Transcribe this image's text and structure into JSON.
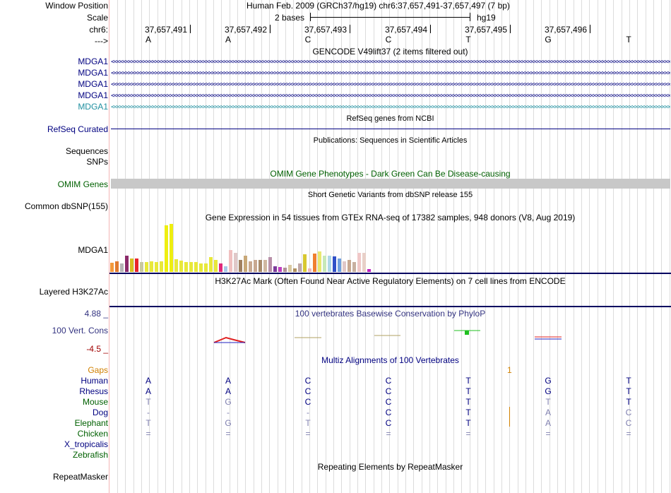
{
  "header": {
    "window_position_label": "Window Position",
    "window_position_text": "Human Feb. 2009 (GRCh37/hg19)   chr6:37,657,491-37,657,497 (7 bp)",
    "scale_label": "Scale",
    "scale_text": "2 bases",
    "scale_assembly": "hg19",
    "chrom_label": "chr6:",
    "strand_label": "--->",
    "positions": [
      "37,657,491",
      "37,657,492",
      "37,657,493",
      "37,657,494",
      "37,657,495",
      "37,657,496"
    ],
    "bases": [
      "A",
      "A",
      "C",
      "C",
      "T",
      "G",
      "T"
    ]
  },
  "tracks": {
    "gencode_title": "GENCODE V49lift37 (2 items filtered out)",
    "gencode_items": [
      "MDGA1",
      "MDGA1",
      "MDGA1",
      "MDGA1",
      "MDGA1"
    ],
    "refseq_title": "RefSeq genes from NCBI",
    "refseq_label": "RefSeq Curated",
    "publications_title": "Publications: Sequences in Scientific Articles",
    "sequences_label": "Sequences",
    "snps_label": "SNPs",
    "omim_title": "OMIM Gene Phenotypes - Dark Green Can Be Disease-causing",
    "omim_label": "OMIM Genes",
    "dbsnp_title": "Short Genetic Variants from dbSNP release 155",
    "dbsnp_label": "Common dbSNP(155)",
    "gtex_title": "Gene Expression in 54 tissues from GTEx RNA-seq of 17382 samples, 948 donors (V8, Aug 2019)",
    "gtex_label": "MDGA1",
    "h3k27_title": "H3K27Ac Mark (Often Found Near Active Regulatory Elements) on 7 cell lines from ENCODE",
    "h3k27_label": "Layered H3K27Ac",
    "cons_title": "100 vertebrates Basewise Conservation by PhyloP",
    "cons_label": "100 Vert. Cons",
    "cons_max": "4.88 _",
    "cons_min": "-4.5 _",
    "multiz_title": "Multiz Alignments of 100 Vertebrates",
    "repeat_title": "Repeating Elements by RepeatMasker",
    "repeat_label": "RepeatMasker"
  },
  "gtex_bars": [
    {
      "color": "#f39a3c",
      "value": 0.19
    },
    {
      "color": "#e07a2e",
      "value": 0.22
    },
    {
      "color": "#b5b5b5",
      "value": 0.17
    },
    {
      "color": "#8b2a6a",
      "value": 0.33
    },
    {
      "color": "#d8c020",
      "value": 0.28
    },
    {
      "color": "#e8242c",
      "value": 0.28
    },
    {
      "color": "#c8c8a0",
      "value": 0.2
    },
    {
      "color": "#e8e83a",
      "value": 0.2
    },
    {
      "color": "#e8e83a",
      "value": 0.22
    },
    {
      "color": "#e8e83a",
      "value": 0.21
    },
    {
      "color": "#e8e83a",
      "value": 0.22
    },
    {
      "color": "#eeee10",
      "value": 0.96
    },
    {
      "color": "#eeee10",
      "value": 0.99
    },
    {
      "color": "#e8e83a",
      "value": 0.26
    },
    {
      "color": "#e8e83a",
      "value": 0.23
    },
    {
      "color": "#e8e83a",
      "value": 0.21
    },
    {
      "color": "#e8e83a",
      "value": 0.2
    },
    {
      "color": "#e8e83a",
      "value": 0.2
    },
    {
      "color": "#e8e83a",
      "value": 0.18
    },
    {
      "color": "#e8e83a",
      "value": 0.18
    },
    {
      "color": "#e8e83a",
      "value": 0.3
    },
    {
      "color": "#e8e83a",
      "value": 0.24
    },
    {
      "color": "#e0287a",
      "value": 0.18
    },
    {
      "color": "#a8c8e8",
      "value": 0.12
    },
    {
      "color": "#f0c0c0",
      "value": 0.45
    },
    {
      "color": "#e0c8c8",
      "value": 0.39
    },
    {
      "color": "#a08060",
      "value": 0.25
    },
    {
      "color": "#c8a878",
      "value": 0.33
    },
    {
      "color": "#c8a890",
      "value": 0.22
    },
    {
      "color": "#c8a890",
      "value": 0.25
    },
    {
      "color": "#a88a6a",
      "value": 0.25
    },
    {
      "color": "#d0b8a0",
      "value": 0.25
    },
    {
      "color": "#b890a8",
      "value": 0.3
    },
    {
      "color": "#7c3c9c",
      "value": 0.12
    },
    {
      "color": "#c040c0",
      "value": 0.1
    },
    {
      "color": "#b09098",
      "value": 0.09
    },
    {
      "color": "#d8c8a0",
      "value": 0.15
    },
    {
      "color": "#b09060",
      "value": 0.07
    },
    {
      "color": "#c0a8a8",
      "value": 0.18
    },
    {
      "color": "#d8c830",
      "value": 0.36
    },
    {
      "color": "#f0b8b8",
      "value": 0.07
    },
    {
      "color": "#f08030",
      "value": 0.37
    },
    {
      "color": "#e8e870",
      "value": 0.42
    },
    {
      "color": "#c8e8b8",
      "value": 0.33
    },
    {
      "color": "#b0d8e8",
      "value": 0.34
    },
    {
      "color": "#3050c8",
      "value": 0.32
    },
    {
      "color": "#70a0e0",
      "value": 0.27
    },
    {
      "color": "#e0c8c8",
      "value": 0.22
    },
    {
      "color": "#c8a890",
      "value": 0.24
    },
    {
      "color": "#c8b0a0",
      "value": 0.21
    },
    {
      "color": "#f0c8c8",
      "value": 0.39
    },
    {
      "color": "#e8d0c8",
      "value": 0.39
    },
    {
      "color": "#c020c0",
      "value": 0.06
    }
  ],
  "species": [
    {
      "name": "Gaps",
      "color": "#d08000"
    },
    {
      "name": "Human",
      "color": "#000080"
    },
    {
      "name": "Rhesus",
      "color": "#000080"
    },
    {
      "name": "Mouse",
      "color": "#006000"
    },
    {
      "name": "Dog",
      "color": "#000080"
    },
    {
      "name": "Elephant",
      "color": "#006000"
    },
    {
      "name": "Chicken",
      "color": "#006000"
    },
    {
      "name": "X_tropicalis",
      "color": "#000080"
    },
    {
      "name": "Zebrafish",
      "color": "#006000"
    }
  ],
  "alignments": {
    "gap_mark": "1",
    "human": [
      "A",
      "A",
      "C",
      "C",
      "T",
      "G",
      "T"
    ],
    "rhesus": [
      "A",
      "A",
      "C",
      "C",
      "T",
      "G",
      "T"
    ],
    "mouse": [
      "T",
      "G",
      "C",
      "C",
      "T",
      "T",
      "T"
    ],
    "dog": [
      "-",
      "-",
      "-",
      "C",
      "T",
      "A",
      "C"
    ],
    "elephant": [
      "T",
      "G",
      "T",
      "C",
      "T",
      "A",
      "C"
    ],
    "chicken": [
      "=",
      "=",
      "=",
      "=",
      "=",
      "=",
      "="
    ]
  },
  "colors": {
    "navy": "#000080",
    "omim_green": "#006000",
    "omim_bar": "#c8c8c8",
    "gray_base": "#8080b0",
    "cons_label": "#333380"
  }
}
